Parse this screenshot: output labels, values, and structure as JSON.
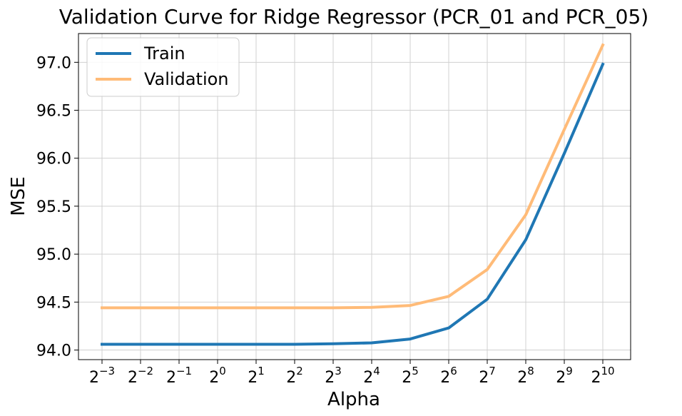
{
  "chart_data": {
    "type": "line",
    "title": "Validation Curve for Ridge Regressor (PCR_01 and PCR_05)",
    "xlabel": "Alpha",
    "ylabel": "MSE",
    "x_base": "2",
    "x_exponents": [
      "−3",
      "−2",
      "−1",
      "0",
      "1",
      "2",
      "3",
      "4",
      "5",
      "6",
      "7",
      "8",
      "9",
      "10"
    ],
    "ylim": [
      93.9,
      97.3
    ],
    "yticks": [
      94.0,
      94.5,
      95.0,
      95.5,
      96.0,
      96.5,
      97.0
    ],
    "ytick_labels": [
      "94.0",
      "94.5",
      "95.0",
      "95.5",
      "96.0",
      "96.5",
      "97.0"
    ],
    "grid": true,
    "legend_position": "upper-left",
    "series": [
      {
        "name": "Train",
        "color": "#1f77b4",
        "values": [
          94.06,
          94.06,
          94.06,
          94.06,
          94.06,
          94.06,
          94.065,
          94.075,
          94.115,
          94.23,
          94.53,
          95.15,
          96.05,
          96.98
        ]
      },
      {
        "name": "Validation",
        "color": "#ffbb78",
        "values": [
          94.44,
          94.44,
          94.44,
          94.44,
          94.44,
          94.44,
          94.44,
          94.445,
          94.465,
          94.56,
          94.84,
          95.41,
          96.3,
          97.18
        ]
      }
    ]
  }
}
